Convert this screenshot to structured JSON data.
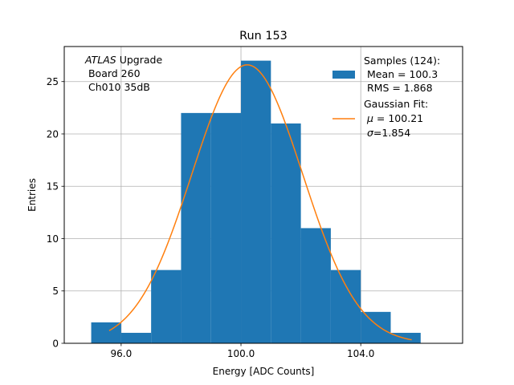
{
  "chart_data": {
    "type": "bar",
    "title": "Run 153",
    "xlabel": "Energy [ADC Counts]",
    "ylabel": "Entries",
    "xlim": [
      94.1,
      107.4
    ],
    "ylim": [
      0,
      28.35
    ],
    "x_ticks": [
      96,
      100,
      104
    ],
    "x_tick_labels": [
      "96.0",
      "100.0",
      "104.0"
    ],
    "y_ticks": [
      0,
      5,
      10,
      15,
      20,
      25
    ],
    "y_tick_labels": [
      "0",
      "5",
      "10",
      "15",
      "20",
      "25"
    ],
    "grid": true,
    "bin_edges": [
      95,
      96,
      97,
      98,
      99,
      100,
      101,
      102,
      103,
      104,
      105,
      106
    ],
    "counts": [
      2,
      1,
      7,
      22,
      22,
      27,
      21,
      11,
      7,
      3,
      1
    ],
    "histogram_color": "#1f77b4",
    "fit": {
      "type": "gaussian",
      "amplitude": 26.6,
      "mu": 100.21,
      "sigma": 1.854,
      "x_range": [
        95.6,
        105.7
      ],
      "color": "#ff7f0e"
    },
    "annotation": {
      "line1_italic": "ATLAS",
      "line1_rest": " Upgrade",
      "line2": " Board 260",
      "line3": " Ch010 35dB"
    },
    "legend": {
      "position": "upper right",
      "samples": {
        "line1": "Samples (124):",
        "line2": " Mean = 100.3",
        "line3": " RMS = 1.868"
      },
      "fit": {
        "line1": "Gaussian Fit:",
        "line2_symbol": "μ",
        "line2_rest": " = 100.21",
        "line3_symbol": "σ",
        "line3_rest": "=1.854"
      }
    }
  }
}
